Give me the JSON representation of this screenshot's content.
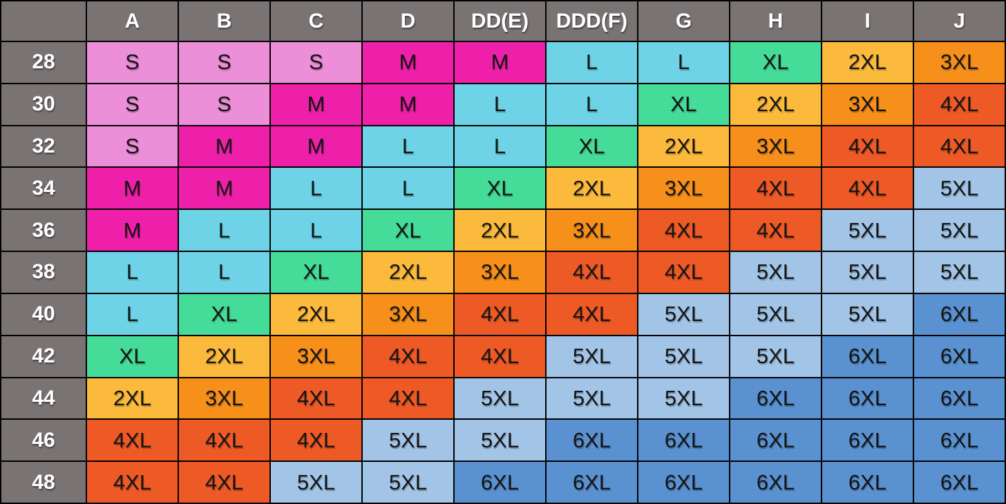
{
  "colors": {
    "header_bg": "#7a7373",
    "border": "#000000",
    "header_text": "#ffffff",
    "cell_text": "#141414",
    "size_fills": {
      "S": "#ec8ed8",
      "M": "#ee1fa9",
      "L": "#6ed3e6",
      "XL": "#45db98",
      "2XL": "#fcba3d",
      "3XL": "#f78f1b",
      "4XL": "#ee5a26",
      "5XL": "#a2c4e6",
      "6XL": "#5a92d1"
    }
  },
  "chart_data": {
    "type": "table",
    "title": "",
    "corner_label": "",
    "column_headers": [
      "A",
      "B",
      "C",
      "D",
      "DD(E)",
      "DDD(F)",
      "G",
      "H",
      "I",
      "J"
    ],
    "row_headers": [
      "28",
      "30",
      "32",
      "34",
      "36",
      "38",
      "40",
      "42",
      "44",
      "46",
      "48"
    ],
    "rows": [
      [
        "S",
        "S",
        "S",
        "M",
        "M",
        "L",
        "L",
        "XL",
        "2XL",
        "3XL"
      ],
      [
        "S",
        "S",
        "M",
        "M",
        "L",
        "L",
        "XL",
        "2XL",
        "3XL",
        "4XL"
      ],
      [
        "S",
        "M",
        "M",
        "L",
        "L",
        "XL",
        "2XL",
        "3XL",
        "4XL",
        "4XL"
      ],
      [
        "M",
        "M",
        "L",
        "L",
        "XL",
        "2XL",
        "3XL",
        "4XL",
        "4XL",
        "5XL"
      ],
      [
        "M",
        "L",
        "L",
        "XL",
        "2XL",
        "3XL",
        "4XL",
        "4XL",
        "5XL",
        "5XL"
      ],
      [
        "L",
        "L",
        "XL",
        "2XL",
        "3XL",
        "4XL",
        "4XL",
        "5XL",
        "5XL",
        "5XL"
      ],
      [
        "L",
        "XL",
        "2XL",
        "3XL",
        "4XL",
        "4XL",
        "5XL",
        "5XL",
        "5XL",
        "6XL"
      ],
      [
        "XL",
        "2XL",
        "3XL",
        "4XL",
        "4XL",
        "5XL",
        "5XL",
        "5XL",
        "6XL",
        "6XL"
      ],
      [
        "2XL",
        "3XL",
        "4XL",
        "4XL",
        "5XL",
        "5XL",
        "5XL",
        "6XL",
        "6XL",
        "6XL"
      ],
      [
        "4XL",
        "4XL",
        "4XL",
        "5XL",
        "5XL",
        "6XL",
        "6XL",
        "6XL",
        "6XL",
        "6XL"
      ],
      [
        "4XL",
        "4XL",
        "5XL",
        "5XL",
        "6XL",
        "6XL",
        "6XL",
        "6XL",
        "6XL",
        "6XL"
      ]
    ],
    "layout": {
      "grid": true,
      "legend": false,
      "header_row": true,
      "header_column": true
    }
  }
}
